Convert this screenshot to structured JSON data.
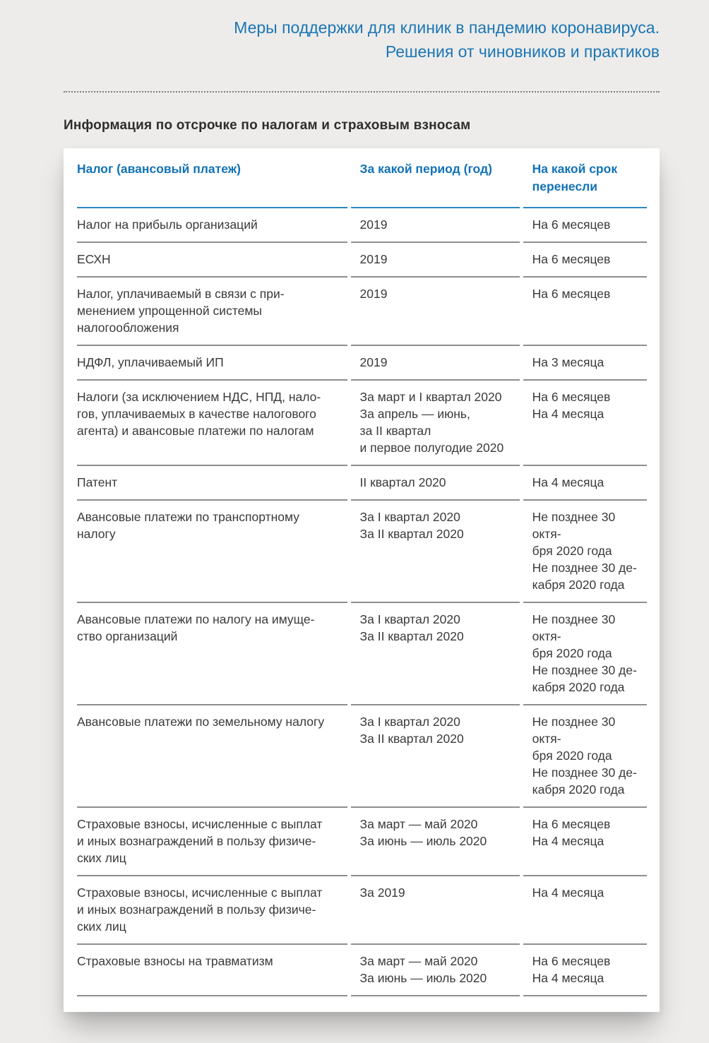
{
  "page": {
    "title": "Меры поддержки для клиник в пандемию коронавируса.\nРешения от чиновников и практиков",
    "section_heading": "Информация по отсрочке по налогам и страховым взносам"
  },
  "table": {
    "columns": [
      "Налог (авансовый платеж)",
      "За какой период (год)",
      "На какой срок\nперенесли"
    ],
    "rows": [
      {
        "tax": "Налог на прибыль организаций",
        "period": "2019",
        "term": "На 6 месяцев"
      },
      {
        "tax": "ЕСХН",
        "period": "2019",
        "term": "На 6 месяцев"
      },
      {
        "tax": "Налог, уплачиваемый в связи с при-\nменением упрощенной системы\nналогообложения",
        "period": "2019",
        "term": "На 6 месяцев"
      },
      {
        "tax": "НДФЛ, уплачиваемый ИП",
        "period": "2019",
        "term": "На 3 месяца"
      },
      {
        "tax": "Налоги (за исключением НДС, НПД, нало-\nгов, уплачиваемых в качестве налогового\nагента) и авансовые платежи по налогам",
        "period": "За март и I квартал 2020\nЗа апрель — июнь,\nза II квартал\nи первое полугодие 2020",
        "term": "На 6 месяцев\nНа 4 месяца"
      },
      {
        "tax": "Патент",
        "period": "II квартал 2020",
        "term": "На 4 месяца"
      },
      {
        "tax": "Авансовые платежи по транспортному\nналогу",
        "period": "За I квартал 2020\nЗа II квартал 2020",
        "term": "Не позднее 30 октя-\nбря 2020 года\nНе позднее 30 де-\nкабря 2020 года"
      },
      {
        "tax": "Авансовые платежи по налогу на имуще-\nство организаций",
        "period": "За I квартал 2020\nЗа II квартал 2020",
        "term": "Не позднее 30 октя-\nбря 2020 года\nНе позднее 30 де-\nкабря 2020 года"
      },
      {
        "tax": "Авансовые платежи по земельному налогу",
        "period": "За I квартал 2020\nЗа II квартал 2020",
        "term": "Не позднее 30 октя-\nбря 2020 года\nНе позднее 30 де-\nкабря 2020 года"
      },
      {
        "tax": "Страховые взносы, исчисленные с выплат\nи иных вознаграждений в пользу физиче-\nских лиц",
        "period": "За март — май 2020\nЗа июнь — июль 2020",
        "term": "На 6 месяцев\nНа 4 месяца"
      },
      {
        "tax": "Страховые взносы, исчисленные с выплат\nи иных вознаграждений в пользу физиче-\nских лиц",
        "period": "За 2019",
        "term": "На 4 месяца"
      },
      {
        "tax": "Страховые взносы на травматизм",
        "period": "За март — май 2020\nЗа июнь — июль 2020",
        "term": "На 6 месяцев\nНа 4 месяца"
      }
    ]
  },
  "colors": {
    "accent_blue": "#1b76b5",
    "table_header_blue": "#1272b6",
    "header_rule_blue": "#2e86c1",
    "row_rule_gray": "#8e8e8e",
    "page_background": "#edecea",
    "card_background": "#ffffff",
    "body_text": "#3a3a3a"
  }
}
